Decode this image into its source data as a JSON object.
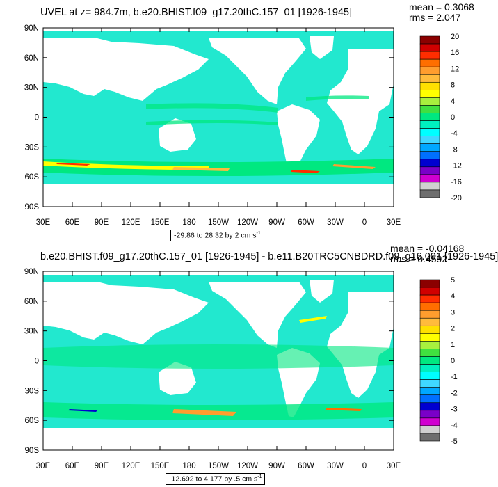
{
  "colors": {
    "ocean_base": "#22e8cf",
    "land": "#ffffff",
    "frame": "#000000"
  },
  "chart_data": [
    {
      "type": "heatmap",
      "title": "UVEL at z= 984.7m, b.e20.BHIST.f09_g17.20thC.157_01 [1926-1945]",
      "stats": {
        "mean": "mean = 0.3068",
        "rms": "rms = 2.047"
      },
      "range_label": "-29.86 to 28.32 by 2 cm s",
      "range_sup": "-1",
      "x_ticks": [
        "30E",
        "60E",
        "90E",
        "120E",
        "150E",
        "180",
        "150W",
        "120W",
        "90W",
        "60W",
        "30W",
        "0",
        "30E"
      ],
      "y_ticks": [
        "90N",
        "60N",
        "30N",
        "0",
        "30S",
        "60S",
        "90S"
      ],
      "colorbar": {
        "labels": [
          "20",
          "16",
          "12",
          "8",
          "4",
          "0",
          "-4",
          "-8",
          "-12",
          "-16",
          "-20"
        ],
        "colors": [
          "#8b0000",
          "#d00000",
          "#ff2d00",
          "#ff6e00",
          "#ff9d2e",
          "#ffbb3c",
          "#ffe000",
          "#ffff00",
          "#a8f03e",
          "#40e040",
          "#00e880",
          "#00f0c0",
          "#00ffff",
          "#40d8ff",
          "#00a8ff",
          "#0070ff",
          "#0000d0",
          "#7a00c8",
          "#d000d0",
          "#d0d0d0",
          "#6e6e6e"
        ]
      }
    },
    {
      "type": "heatmap",
      "title": "b.e20.BHIST.f09_g17.20thC.157_01 [1926-1945] - b.e11.B20TRC5CNBDRD.f09_g16.001 [1926-1945]",
      "stats": {
        "mean": "mean = -0.04168",
        "rms": "rms = 0.4592"
      },
      "range_label": "-12.692 to 4.177 by .5 cm s",
      "range_sup": "-1",
      "x_ticks": [
        "30E",
        "60E",
        "90E",
        "120E",
        "150E",
        "180",
        "150W",
        "120W",
        "90W",
        "60W",
        "30W",
        "0",
        "30E"
      ],
      "y_ticks": [
        "90N",
        "60N",
        "30N",
        "0",
        "30S",
        "60S",
        "90S"
      ],
      "colorbar": {
        "labels": [
          "5",
          "4",
          "3",
          "2",
          "1",
          "0",
          "-1",
          "-2",
          "-3",
          "-4",
          "-5"
        ],
        "colors": [
          "#8b0000",
          "#d00000",
          "#ff2d00",
          "#ff6e00",
          "#ff9d2e",
          "#ffbb3c",
          "#ffe000",
          "#ffff00",
          "#a8f03e",
          "#40e040",
          "#00e880",
          "#00f0c0",
          "#00ffff",
          "#40d8ff",
          "#00a8ff",
          "#0070ff",
          "#0000d0",
          "#7a00c8",
          "#d000d0",
          "#d0d0d0",
          "#6e6e6e"
        ]
      }
    }
  ]
}
